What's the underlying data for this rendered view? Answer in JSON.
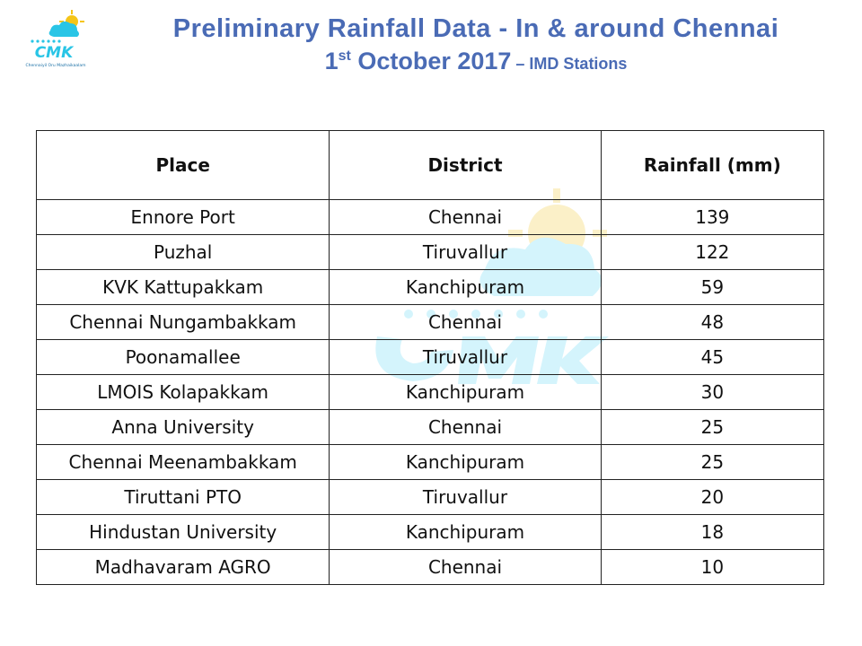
{
  "logo": {
    "text": "CMK",
    "subtext": "Chennaiyil Oru Mazhaikaalam"
  },
  "title": {
    "line1": "Preliminary Rainfall Data  - In & around Chennai",
    "date_num": "1",
    "date_sup": "st",
    "date_rest": " October 2017",
    "suffix": " – IMD Stations"
  },
  "table": {
    "headers": [
      "Place",
      "District",
      "Rainfall (mm)"
    ],
    "rows": [
      [
        "Ennore Port",
        "Chennai",
        "139"
      ],
      [
        "Puzhal",
        "Tiruvallur",
        "122"
      ],
      [
        "KVK Kattupakkam",
        "Kanchipuram",
        "59"
      ],
      [
        "Chennai Nungambakkam",
        "Chennai",
        "48"
      ],
      [
        "Poonamallee",
        "Tiruvallur",
        "45"
      ],
      [
        "LMOIS Kolapakkam",
        "Kanchipuram",
        "30"
      ],
      [
        "Anna University",
        "Chennai",
        "25"
      ],
      [
        "Chennai Meenambakkam",
        "Kanchipuram",
        "25"
      ],
      [
        "Tiruttani PTO",
        "Tiruvallur",
        "20"
      ],
      [
        "Hindustan University",
        "Kanchipuram",
        "18"
      ],
      [
        "Madhavaram AGRO",
        "Chennai",
        "10"
      ]
    ]
  },
  "colors": {
    "title": "#4a6bb5",
    "logo_cyan": "#29c5e6",
    "logo_yellow": "#f5c518",
    "watermark_cyan": "#c9f1fb",
    "watermark_yellow": "#fbeec0"
  }
}
